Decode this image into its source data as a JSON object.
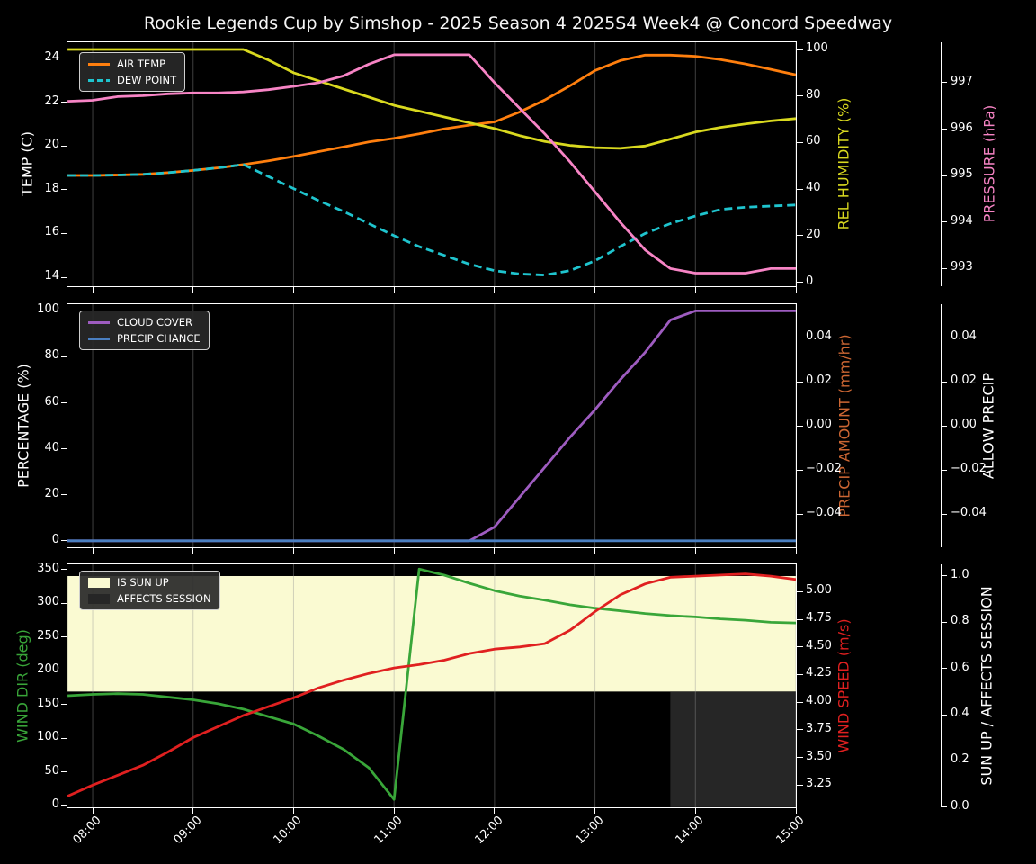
{
  "title": "Rookie Legends Cup by Simshop - 2025 Season 4 2025S4 Week4 @ Concord Speedway",
  "x_axis": {
    "tick_labels": [
      "08:00",
      "09:00",
      "10:00",
      "11:00",
      "12:00",
      "13:00",
      "14:00",
      "15:00"
    ]
  },
  "chart_data": [
    {
      "type": "line",
      "x": [
        "07:45",
        "08:00",
        "08:15",
        "08:30",
        "08:45",
        "09:00",
        "09:15",
        "09:30",
        "09:45",
        "10:00",
        "10:15",
        "10:30",
        "10:45",
        "11:00",
        "11:15",
        "11:30",
        "11:45",
        "12:00",
        "12:15",
        "12:30",
        "12:45",
        "13:00",
        "13:15",
        "13:30",
        "13:45",
        "14:00",
        "14:15",
        "14:30",
        "14:45",
        "15:00"
      ],
      "axes": {
        "left": {
          "label": "TEMP (C)",
          "color": "#ffffff",
          "ticks": [
            "24",
            "22",
            "20",
            "18",
            "16",
            "14"
          ],
          "ylim": [
            13.59,
            24.74
          ]
        },
        "right_inner": {
          "label": "REL HUMIDITY (%)",
          "color": "#d9d91f",
          "ticks": [
            "100",
            "80",
            "60",
            "40",
            "20",
            "0"
          ],
          "ylim": [
            -1.7,
            103.1
          ]
        },
        "right_outer": {
          "label": "PRESSURE (hPa)",
          "color": "#f784c5",
          "ticks": [
            "997",
            "996",
            "995",
            "994",
            "993"
          ],
          "ylim": [
            992.62,
            997.87
          ]
        }
      },
      "series": [
        {
          "name": "AIR TEMP",
          "color": "#ff7f0e",
          "axis": "left",
          "dash": false,
          "legend": true,
          "values": [
            18.65,
            18.65,
            18.67,
            18.7,
            18.78,
            18.88,
            19.0,
            19.15,
            19.32,
            19.52,
            19.74,
            19.96,
            20.18,
            20.35,
            20.55,
            20.78,
            20.95,
            21.1,
            21.55,
            22.1,
            22.75,
            23.45,
            23.9,
            24.15,
            24.15,
            24.1,
            23.95,
            23.75,
            23.5,
            23.25
          ]
        },
        {
          "name": "DEW POINT",
          "color": "#1fc4ce",
          "axis": "left",
          "dash": true,
          "legend": true,
          "values": [
            18.65,
            18.65,
            18.67,
            18.7,
            18.78,
            18.88,
            19.0,
            19.15,
            18.6,
            18.05,
            17.5,
            17.0,
            16.45,
            15.9,
            15.4,
            15.0,
            14.6,
            14.3,
            14.15,
            14.1,
            14.3,
            14.75,
            15.4,
            16.0,
            16.45,
            16.8,
            17.1,
            17.2,
            17.25,
            17.3
          ]
        },
        {
          "name": "REL HUMIDITY",
          "color": "#d9d91f",
          "axis": "right_inner",
          "dash": false,
          "legend": false,
          "values": [
            100,
            100,
            100,
            100,
            100,
            100,
            100,
            100,
            95.5,
            90,
            86.5,
            83,
            79.5,
            76,
            73.5,
            71,
            68.5,
            66,
            63,
            60.5,
            58.8,
            57.8,
            57.5,
            58.5,
            61.5,
            64.5,
            66.5,
            68,
            69.3,
            70.3
          ]
        },
        {
          "name": "PRESSURE",
          "color": "#f784c5",
          "axis": "right_outer",
          "dash": false,
          "legend": false,
          "values": [
            996.6,
            996.62,
            996.7,
            996.72,
            996.76,
            996.78,
            996.78,
            996.8,
            996.85,
            996.92,
            997.0,
            997.15,
            997.4,
            997.6,
            997.6,
            997.6,
            997.6,
            997.0,
            996.45,
            995.9,
            995.3,
            994.65,
            994.0,
            993.4,
            993.0,
            992.9,
            992.9,
            992.9,
            993.0,
            993.0
          ]
        }
      ]
    },
    {
      "type": "line",
      "x": [
        "07:45",
        "08:00",
        "08:15",
        "08:30",
        "08:45",
        "09:00",
        "09:15",
        "09:30",
        "09:45",
        "10:00",
        "10:15",
        "10:30",
        "10:45",
        "11:00",
        "11:15",
        "11:30",
        "11:45",
        "12:00",
        "12:15",
        "12:30",
        "12:45",
        "13:00",
        "13:15",
        "13:30",
        "13:45",
        "14:00",
        "14:15",
        "14:30",
        "14:45",
        "15:00"
      ],
      "axes": {
        "left": {
          "label": "PERCENTAGE (%)",
          "color": "#ffffff",
          "ticks": [
            "100",
            "80",
            "60",
            "40",
            "20",
            "0"
          ],
          "ylim": [
            -2.8,
            102.9
          ]
        },
        "right_inner": {
          "label": "PRECIP AMOUNT (mm/hr)",
          "color": "#cc6633",
          "ticks": [
            "0.04",
            "0.02",
            "0.00",
            "−0.02",
            "−0.04"
          ],
          "ylim": [
            -0.0551,
            0.0553
          ]
        },
        "right_outer": {
          "label": "ALLOW PRECIP",
          "color": "#ffffff",
          "ticks": [
            "0.04",
            "0.02",
            "0.00",
            "−0.02",
            "−0.04"
          ],
          "ylim": [
            -0.0551,
            0.0553
          ]
        }
      },
      "series": [
        {
          "name": "CLOUD COVER",
          "color": "#9e5cc0",
          "axis": "left",
          "dash": false,
          "legend": true,
          "values": [
            0,
            0,
            0,
            0,
            0,
            0,
            0,
            0,
            0,
            0,
            0,
            0,
            0,
            0,
            0,
            0,
            0,
            6,
            19,
            32,
            45,
            57,
            70,
            82,
            96,
            100,
            100,
            100,
            100,
            100
          ]
        },
        {
          "name": "PRECIP CHANCE",
          "color": "#4a7fc1",
          "axis": "left",
          "dash": false,
          "legend": true,
          "values": [
            0,
            0,
            0,
            0,
            0,
            0,
            0,
            0,
            0,
            0,
            0,
            0,
            0,
            0,
            0,
            0,
            0,
            0,
            0,
            0,
            0,
            0,
            0,
            0,
            0,
            0,
            0,
            0,
            0,
            0
          ]
        }
      ]
    },
    {
      "type": "line",
      "x": [
        "07:45",
        "08:00",
        "08:15",
        "08:30",
        "08:45",
        "09:00",
        "09:15",
        "09:30",
        "09:45",
        "10:00",
        "10:15",
        "10:30",
        "10:45",
        "11:00",
        "11:15",
        "11:30",
        "11:45",
        "12:00",
        "12:15",
        "12:30",
        "12:45",
        "13:00",
        "13:15",
        "13:30",
        "13:45",
        "14:00",
        "14:15",
        "14:30",
        "14:45",
        "15:00"
      ],
      "axes": {
        "left": {
          "label": "WIND DIR (deg)",
          "color": "#39a639",
          "ticks": [
            "350",
            "300",
            "250",
            "200",
            "150",
            "100",
            "50",
            "0"
          ],
          "ylim": [
            -2.7,
            358
          ]
        },
        "right_inner": {
          "label": "WIND SPEED (m/s)",
          "color": "#e02020",
          "ticks": [
            "5.00",
            "4.75",
            "4.50",
            "4.25",
            "4.00",
            "3.75",
            "3.50",
            "3.25"
          ],
          "ylim": [
            3.049,
            5.247
          ]
        },
        "right_outer": {
          "label": "SUN UP / AFFECTS SESSION",
          "color": "#ffffff",
          "ticks": [
            "1.0",
            "0.8",
            "0.6",
            "0.4",
            "0.2",
            "0.0"
          ],
          "ylim": [
            -0.001,
            1.0506
          ]
        }
      },
      "bands": [
        {
          "name": "IS SUN UP",
          "color": "#fafad2",
          "axis": "right_outer",
          "y0": 0.5,
          "y1": 1.0,
          "x_start": "07:45",
          "x_end": "15:00",
          "legend": true
        },
        {
          "name": "AFFECTS SESSION",
          "color": "#262626",
          "axis": "right_outer",
          "y0": 0.0,
          "y1": 0.5,
          "x_start": "13:45",
          "x_end": "15:00",
          "legend": true
        }
      ],
      "series": [
        {
          "name": "WIND DIR",
          "color": "#39a639",
          "axis": "left",
          "dash": false,
          "legend": false,
          "values": [
            163,
            165,
            166,
            165,
            161,
            157,
            151,
            143,
            132,
            121,
            103,
            83,
            56,
            9,
            351,
            342,
            330,
            319,
            311,
            305,
            298,
            293,
            289,
            285,
            282,
            280,
            277,
            275,
            272,
            271
          ]
        },
        {
          "name": "WIND SPEED",
          "color": "#e02020",
          "axis": "right_inner",
          "dash": false,
          "legend": false,
          "values": [
            3.15,
            3.25,
            3.34,
            3.43,
            3.55,
            3.68,
            3.78,
            3.88,
            3.96,
            4.04,
            4.13,
            4.2,
            4.26,
            4.31,
            4.34,
            4.38,
            4.44,
            4.48,
            4.5,
            4.53,
            4.65,
            4.82,
            4.97,
            5.07,
            5.13,
            5.14,
            5.15,
            5.16,
            5.14,
            5.11
          ]
        }
      ]
    }
  ]
}
